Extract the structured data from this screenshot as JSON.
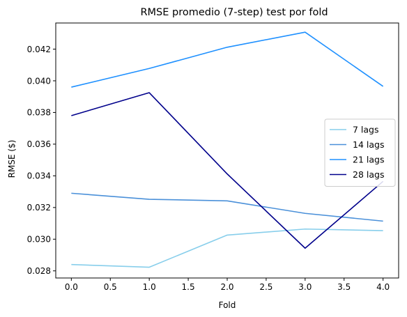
{
  "chart_data": {
    "type": "line",
    "title": "RMSE promedio (7-step) test por fold",
    "xlabel": "Fold",
    "ylabel": "RMSE ($)",
    "x": [
      0,
      1,
      2,
      3,
      4
    ],
    "xlim": [
      -0.2,
      4.2
    ],
    "ylim": [
      0.02755,
      0.04365
    ],
    "xticks": [
      0.0,
      0.5,
      1.0,
      1.5,
      2.0,
      2.5,
      3.0,
      3.5,
      4.0
    ],
    "xtick_labels": [
      "0.0",
      "0.5",
      "1.0",
      "1.5",
      "2.0",
      "2.5",
      "3.0",
      "3.5",
      "4.0"
    ],
    "yticks": [
      0.028,
      0.03,
      0.032,
      0.034,
      0.036,
      0.038,
      0.04,
      0.042
    ],
    "ytick_labels": [
      "0.028",
      "0.030",
      "0.032",
      "0.034",
      "0.036",
      "0.038",
      "0.040",
      "0.042"
    ],
    "grid": false,
    "legend_position": "center-right",
    "series": [
      {
        "name": "7 lags",
        "color": "#87ceeb",
        "values": [
          0.0284,
          0.02823,
          0.03026,
          0.03064,
          0.03054
        ]
      },
      {
        "name": "14 lags",
        "color": "#4a90d9",
        "values": [
          0.0329,
          0.03252,
          0.03242,
          0.03163,
          0.03114
        ]
      },
      {
        "name": "21 lags",
        "color": "#1e90ff",
        "values": [
          0.0396,
          0.04078,
          0.04212,
          0.04307,
          0.03965
        ]
      },
      {
        "name": "28 lags",
        "color": "#00008b",
        "values": [
          0.0378,
          0.03925,
          0.03412,
          0.02943,
          0.03365
        ]
      }
    ]
  }
}
